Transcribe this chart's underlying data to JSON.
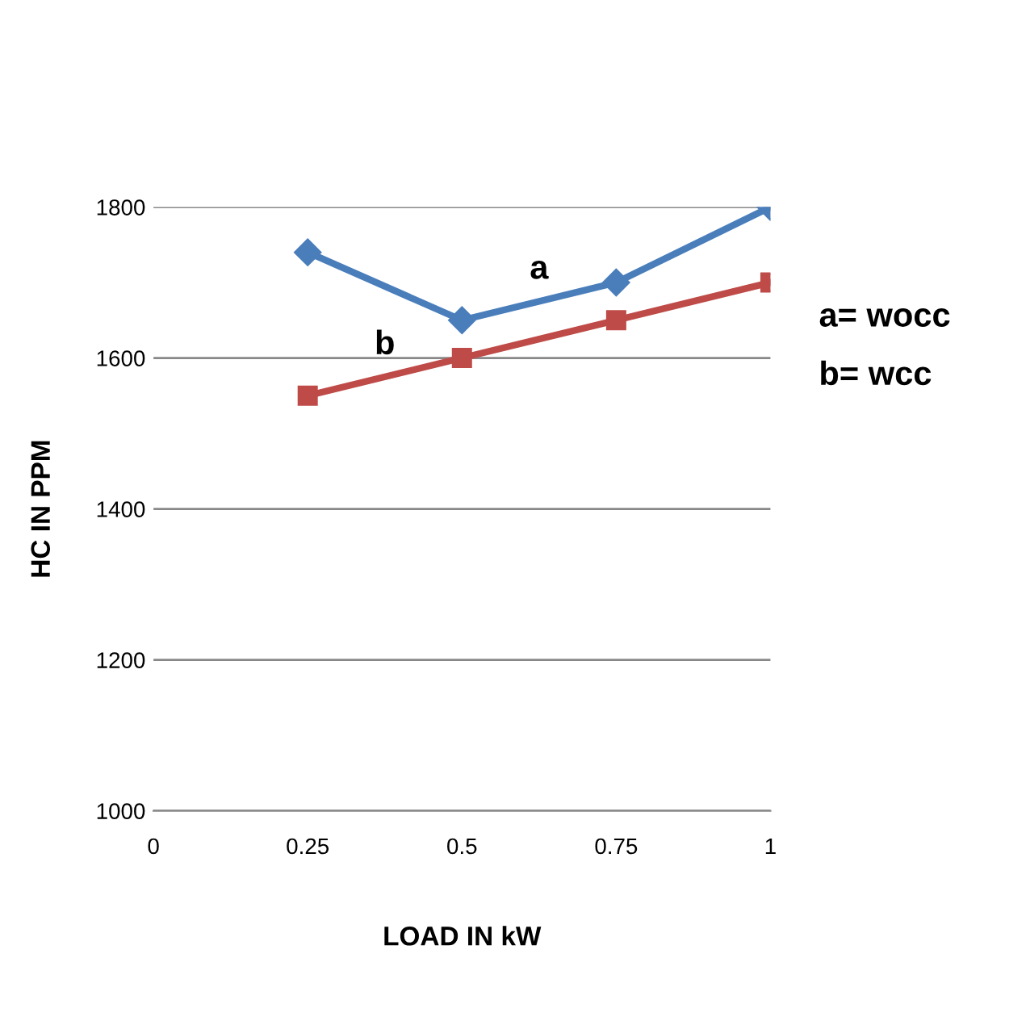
{
  "chart_data": {
    "type": "line",
    "xlabel": "LOAD IN kW",
    "ylabel": "HC IN PPM",
    "x": [
      0.25,
      0.5,
      0.75,
      1
    ],
    "series": [
      {
        "name": "a",
        "color": "#4a7ebb",
        "values": [
          1740,
          1650,
          1700,
          1800
        ],
        "marker": "diamond"
      },
      {
        "name": "b",
        "color": "#be4b48",
        "values": [
          1550,
          1600,
          1650,
          1700
        ],
        "marker": "square"
      }
    ],
    "xlim": [
      0,
      1
    ],
    "xticks": [
      0,
      0.25,
      0.5,
      0.75,
      1
    ],
    "ylim": [
      1000,
      1800
    ],
    "yticks": [
      1000,
      1200,
      1400,
      1600,
      1800
    ],
    "grid": "y",
    "legend": false,
    "annotations": [
      "a= wocc",
      "b= wcc"
    ]
  }
}
